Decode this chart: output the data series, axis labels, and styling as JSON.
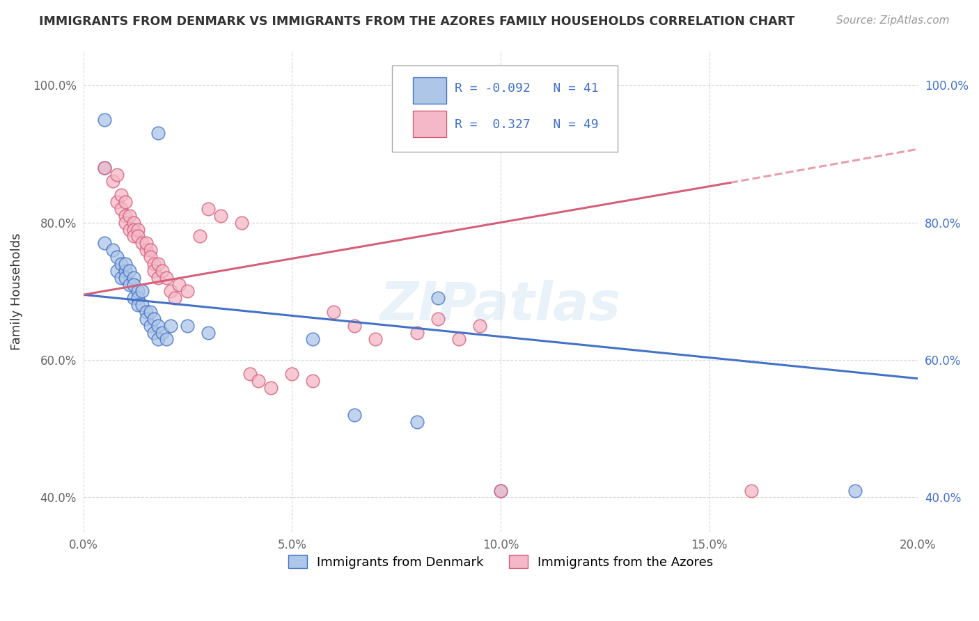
{
  "title": "IMMIGRANTS FROM DENMARK VS IMMIGRANTS FROM THE AZORES FAMILY HOUSEHOLDS CORRELATION CHART",
  "source": "Source: ZipAtlas.com",
  "ylabel": "Family Households",
  "legend_denmark": "Immigrants from Denmark",
  "legend_azores": "Immigrants from the Azores",
  "r_denmark": -0.092,
  "n_denmark": 41,
  "r_azores": 0.327,
  "n_azores": 49,
  "xlim": [
    0.0,
    0.2
  ],
  "ylim": [
    0.35,
    1.05
  ],
  "xticks": [
    0.0,
    0.05,
    0.1,
    0.15,
    0.2
  ],
  "xticklabels": [
    "0.0%",
    "5.0%",
    "10.0%",
    "15.0%",
    "20.0%"
  ],
  "yticks": [
    0.4,
    0.6,
    0.8,
    1.0
  ],
  "yticklabels": [
    "40.0%",
    "60.0%",
    "80.0%",
    "100.0%"
  ],
  "color_denmark_fill": "#aec6e8",
  "color_azores_fill": "#f4b8c8",
  "color_denmark_edge": "#4472c4",
  "color_azores_edge": "#d4607a",
  "color_denmark_line": "#4472c4",
  "color_azores_line": "#d4607a",
  "background_color": "#ffffff",
  "dk_trend_x0": 0.0,
  "dk_trend_y0": 0.695,
  "dk_trend_x1": 0.2,
  "dk_trend_y1": 0.573,
  "az_trend_x0": 0.0,
  "az_trend_y0": 0.695,
  "az_trend_x1_solid": 0.155,
  "az_trend_y1_solid": 0.858,
  "az_trend_x1_dash": 0.2,
  "az_trend_y1_dash": 0.907,
  "denmark_scatter_x": [
    0.005,
    0.018,
    0.005,
    0.005,
    0.007,
    0.008,
    0.008,
    0.009,
    0.009,
    0.01,
    0.01,
    0.01,
    0.011,
    0.011,
    0.012,
    0.012,
    0.012,
    0.013,
    0.013,
    0.013,
    0.014,
    0.014,
    0.015,
    0.015,
    0.016,
    0.016,
    0.017,
    0.017,
    0.018,
    0.018,
    0.019,
    0.02,
    0.021,
    0.025,
    0.03,
    0.055,
    0.065,
    0.08,
    0.085,
    0.1,
    0.185
  ],
  "denmark_scatter_y": [
    0.95,
    0.93,
    0.88,
    0.77,
    0.76,
    0.75,
    0.73,
    0.74,
    0.72,
    0.73,
    0.74,
    0.72,
    0.73,
    0.71,
    0.72,
    0.71,
    0.69,
    0.7,
    0.69,
    0.68,
    0.7,
    0.68,
    0.67,
    0.66,
    0.67,
    0.65,
    0.66,
    0.64,
    0.65,
    0.63,
    0.64,
    0.63,
    0.65,
    0.65,
    0.64,
    0.63,
    0.52,
    0.51,
    0.69,
    0.41,
    0.41
  ],
  "azores_scatter_x": [
    0.005,
    0.007,
    0.008,
    0.008,
    0.009,
    0.009,
    0.01,
    0.01,
    0.01,
    0.011,
    0.011,
    0.012,
    0.012,
    0.012,
    0.013,
    0.013,
    0.014,
    0.015,
    0.015,
    0.016,
    0.016,
    0.017,
    0.017,
    0.018,
    0.018,
    0.019,
    0.02,
    0.021,
    0.022,
    0.023,
    0.025,
    0.028,
    0.03,
    0.033,
    0.038,
    0.04,
    0.042,
    0.045,
    0.05,
    0.055,
    0.06,
    0.065,
    0.07,
    0.08,
    0.085,
    0.09,
    0.095,
    0.1,
    0.16
  ],
  "azores_scatter_y": [
    0.88,
    0.86,
    0.87,
    0.83,
    0.84,
    0.82,
    0.83,
    0.81,
    0.8,
    0.79,
    0.81,
    0.8,
    0.79,
    0.78,
    0.79,
    0.78,
    0.77,
    0.76,
    0.77,
    0.76,
    0.75,
    0.74,
    0.73,
    0.74,
    0.72,
    0.73,
    0.72,
    0.7,
    0.69,
    0.71,
    0.7,
    0.78,
    0.82,
    0.81,
    0.8,
    0.58,
    0.57,
    0.56,
    0.58,
    0.57,
    0.67,
    0.65,
    0.63,
    0.64,
    0.66,
    0.63,
    0.65,
    0.41,
    0.41
  ]
}
